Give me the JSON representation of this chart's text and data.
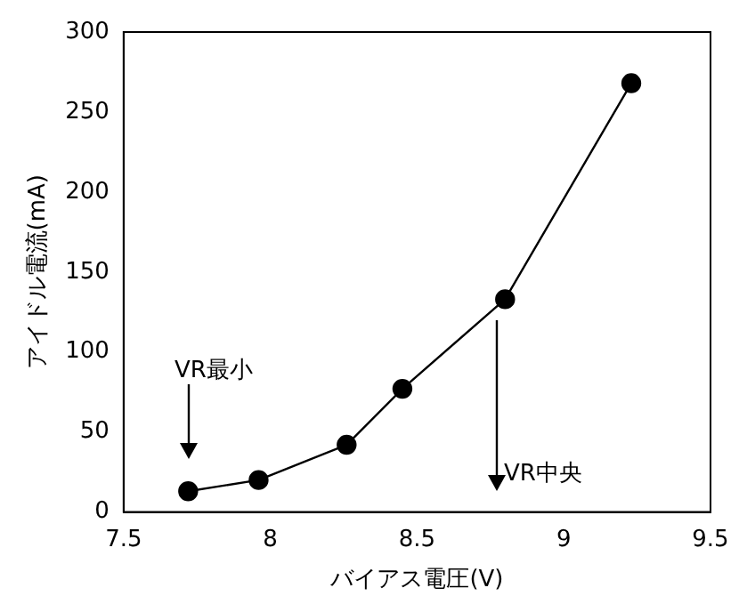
{
  "chart_data": {
    "type": "line",
    "xlabel": "バイアス電圧(V)",
    "ylabel": "アイドル電流(mA)",
    "x": [
      7.72,
      7.96,
      8.26,
      8.45,
      8.8,
      9.23
    ],
    "series": [
      {
        "color": "#000000",
        "values": [
          13,
          20,
          42,
          77,
          133,
          268
        ]
      }
    ],
    "xlim": [
      7.5,
      9.5
    ],
    "xticks": [
      7.5,
      8,
      8.5,
      9,
      9.5
    ],
    "ylim": [
      0,
      300
    ],
    "yticks": [
      0,
      50,
      100,
      150,
      200,
      250,
      300
    ],
    "grid": false,
    "legend": false,
    "marker": "circle",
    "line_style": "solid",
    "annotations": [
      "VR最小",
      "VR中央"
    ]
  }
}
